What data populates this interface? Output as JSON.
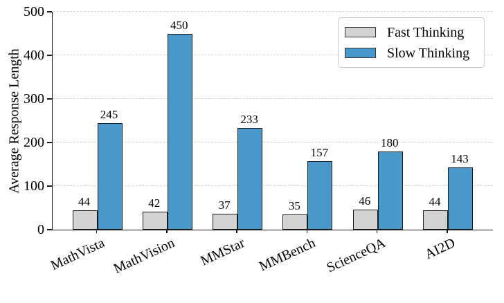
{
  "chart_data": {
    "type": "bar",
    "title": "",
    "xlabel": "",
    "ylabel": "Average Response Length",
    "categories": [
      "MathVista",
      "MathVision",
      "MMStar",
      "MMBench",
      "ScienceQA",
      "AI2D"
    ],
    "series": [
      {
        "name": "Fast Thinking",
        "color": "#d3d3d3",
        "values": [
          44,
          42,
          37,
          35,
          46,
          44
        ]
      },
      {
        "name": "Slow Thinking",
        "color": "#4a98c9",
        "values": [
          245,
          450,
          233,
          157,
          180,
          143
        ]
      }
    ],
    "ylim": [
      0,
      500
    ],
    "yticks": [
      0,
      100,
      200,
      300,
      400,
      500
    ],
    "grid": "horizontal-dashed",
    "grid_color": "#d2d2d2",
    "bar_edge_color": "#1a1a1a",
    "legend_position": "upper-right",
    "value_labels_shown": true
  }
}
